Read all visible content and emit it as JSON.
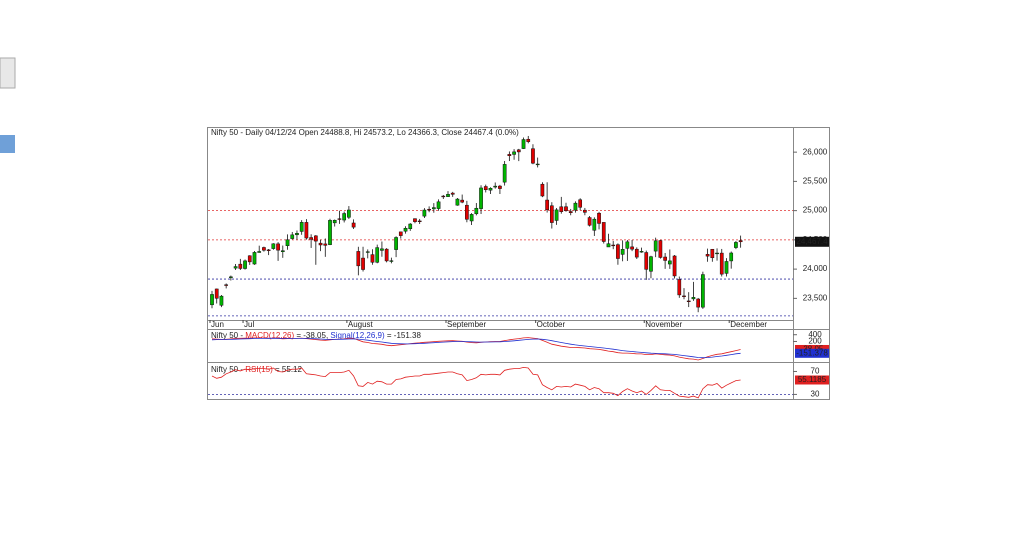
{
  "chart_data": [
    {
      "type": "candlestick",
      "title": "Nifty 50 - Daily 04/12/24 Open 24488.8, Hi 24573.2, Lo 24366.3, Close 24467.4 (0.0%)",
      "categories": [
        "Jun",
        null,
        null,
        null,
        null,
        null,
        null,
        "Jul",
        null,
        null,
        null,
        null,
        null,
        null,
        null,
        null,
        null,
        null,
        null,
        null,
        null,
        null,
        null,
        null,
        null,
        null,
        null,
        null,
        null,
        "August",
        null,
        null,
        null,
        null,
        null,
        null,
        null,
        null,
        null,
        null,
        null,
        null,
        null,
        null,
        null,
        null,
        null,
        null,
        null,
        null,
        "September",
        null,
        null,
        null,
        null,
        null,
        null,
        null,
        null,
        null,
        null,
        null,
        null,
        null,
        null,
        null,
        null,
        null,
        null,
        "October",
        null,
        null,
        null,
        null,
        null,
        null,
        null,
        null,
        null,
        null,
        null,
        null,
        null,
        null,
        null,
        null,
        null,
        null,
        null,
        null,
        null,
        null,
        "November",
        null,
        null,
        null,
        null,
        null,
        null,
        null,
        null,
        null,
        null,
        null,
        null,
        null,
        null,
        null,
        null,
        null,
        "December",
        null,
        null
      ],
      "open": [
        23390,
        23661,
        23382,
        23733,
        23854,
        24017,
        24085,
        24010,
        24229,
        24087,
        24284,
        24370,
        24329,
        24351,
        24432,
        24297,
        24400,
        24522,
        24587,
        24644,
        24799,
        24540,
        24569,
        24444,
        24431,
        24418,
        24791,
        24862,
        24839,
        24886,
        24789,
        24303,
        24189,
        24289,
        24248,
        24117,
        24320,
        24342,
        24143,
        24334,
        24637,
        24648,
        24690,
        24863,
        24824,
        24906,
        25024,
        25030,
        25035,
        25249,
        25239,
        25300,
        25093,
        25180,
        25093,
        24823,
        24946,
        25034,
        25413,
        25350,
        25403,
        25420,
        25487,
        25962,
        25961,
        26040,
        26061,
        26221,
        26059,
        25789,
        25452,
        25181,
        25084,
        24832,
        25066,
        25067,
        24985,
        25008,
        25186,
        25008,
        24882,
        24664,
        24956,
        24799,
        24379,
        24412,
        24418,
        24252,
        24355,
        24381,
        24341,
        24303,
        24284,
        23963,
        24308,
        24489,
        24207,
        24087,
        24225,
        23823,
        23542,
        23456,
        23491,
        23489,
        23349,
        24253,
        24340,
        24274,
        24274,
        23927,
        24140,
        24368,
        24488.8
      ],
      "high": [
        23627,
        23667,
        23558,
        23755,
        23890,
        24087,
        24175,
        24164,
        24237,
        24309,
        24401,
        24384,
        24344,
        24443,
        24461,
        24403,
        24593,
        24635,
        24661,
        24838,
        24855,
        24596,
        24582,
        24504,
        24524,
        24861,
        24848,
        24999,
        24984,
        25078,
        24851,
        24382,
        24382,
        24337,
        24340,
        24419,
        24473,
        24359,
        24196,
        24563,
        24638,
        24734,
        24787,
        24867,
        24858,
        25043,
        25073,
        25129,
        25192,
        25268,
        25333,
        25321,
        25216,
        25275,
        25168,
        24957,
        25130,
        25433,
        25445,
        25400,
        25482,
        25441,
        25849,
        26012,
        26051,
        26056,
        26250,
        26277,
        26135,
        25907,
        25486,
        25485,
        25144,
        25044,
        25235,
        25134,
        25029,
        25159,
        25212,
        25046,
        24908,
        24886,
        24978,
        24799,
        24604,
        24480,
        24440,
        24492,
        24498,
        24498,
        24372,
        24368,
        24317,
        24229,
        24538,
        24503,
        24276,
        24336,
        24242,
        23873,
        23676,
        23606,
        23781,
        23507,
        23956,
        24351,
        24343,
        24354,
        24345,
        24188,
        24301,
        24481,
        24573.2
      ],
      "low": [
        23330,
        23412,
        23350,
        23670,
        23805,
        23985,
        23985,
        23992,
        24072,
        24072,
        24281,
        24300,
        24240,
        24331,
        24141,
        24193,
        24332,
        24505,
        24504,
        24587,
        24505,
        24362,
        24074,
        24307,
        24210,
        24410,
        24728,
        24774,
        24798,
        24856,
        24687,
        23894,
        23960,
        24184,
        24074,
        24100,
        24212,
        24116,
        24099,
        24204,
        24522,
        24607,
        24654,
        24784,
        24771,
        24874,
        24973,
        24964,
        24998,
        25199,
        25235,
        25235,
        25084,
        25127,
        24801,
        24754,
        24919,
        24942,
        25311,
        25285,
        25376,
        25285,
        25429,
        25848,
        25871,
        25847,
        26053,
        26151,
        25794,
        25739,
        25230,
        24967,
        24694,
        24757,
        24948,
        24980,
        24921,
        24967,
        25008,
        24921,
        24728,
        24567,
        24679,
        24438,
        24378,
        24341,
        24074,
        24134,
        24140,
        24307,
        24173,
        24280,
        23816,
        23843,
        24205,
        24179,
        24004,
        24004,
        23839,
        23509,
        23484,
        23351,
        23456,
        23263,
        23320,
        24125,
        24126,
        24145,
        23874,
        23873,
        24008,
        24342,
        24366.3
      ],
      "close": [
        23567,
        23501,
        23538,
        23721,
        23868,
        24044,
        24011,
        24141,
        24124,
        24286,
        24302,
        24323,
        24320,
        24433,
        24324,
        24315,
        24502,
        24586,
        24613,
        24800,
        24531,
        24509,
        24479,
        24413,
        24406,
        24834,
        24836,
        24857,
        24951,
        25011,
        24718,
        24056,
        23993,
        24298,
        24117,
        24368,
        24347,
        24140,
        24144,
        24541,
        24573,
        24699,
        24771,
        24811,
        24823,
        25010,
        25018,
        25052,
        25151,
        25236,
        25279,
        25279,
        25198,
        25145,
        24852,
        24936,
        25041,
        25388,
        25357,
        25383,
        25419,
        25377,
        25791,
        25939,
        26005,
        26004,
        26216,
        26179,
        25811,
        25797,
        25250,
        25015,
        24796,
        25013,
        24982,
        24998,
        24964,
        25128,
        25057,
        24971,
        24750,
        24854,
        24781,
        24472,
        24435,
        24399,
        24181,
        24339,
        24467,
        24341,
        24205,
        24304,
        23996,
        24213,
        24484,
        24199,
        24148,
        24141,
        23883,
        23559,
        23533,
        23453,
        23518,
        23350,
        23907,
        24222,
        24194,
        24275,
        23914,
        24131,
        24276,
        24457,
        24467.4
      ],
      "last_label": "24,467.4",
      "up_color": "#00b400",
      "down_color": "#e00000",
      "ylim": [
        23130,
        26430
      ],
      "yticks": [
        {
          "value": 23500,
          "label": "23,500"
        },
        {
          "value": 24000,
          "label": "24,000"
        },
        {
          "value": 24500,
          "label": "24,500"
        },
        {
          "value": 25000,
          "label": "25,000"
        },
        {
          "value": 25500,
          "label": "25,500"
        },
        {
          "value": 26000,
          "label": "26,000"
        }
      ],
      "levels": [
        {
          "value": 25000,
          "color": "#e03030"
        },
        {
          "value": 24500,
          "color": "#e03030"
        },
        {
          "value": 23830,
          "color": "#3030a0"
        },
        {
          "value": 23200,
          "color": "#3030a0"
        }
      ]
    },
    {
      "type": "line",
      "title": "Nifty 50 - MACD(12,26) = -38.05, Signal(12,26,9) = -151.38",
      "series": [
        {
          "name": "MACD(12,26)",
          "color": "#e02020",
          "values": [
            280,
            270,
            260,
            265,
            275,
            290,
            295,
            300,
            300,
            305,
            305,
            300,
            295,
            300,
            290,
            280,
            285,
            290,
            290,
            300,
            285,
            270,
            255,
            240,
            230,
            250,
            260,
            270,
            280,
            300,
            290,
            240,
            190,
            170,
            140,
            130,
            115,
            90,
            75,
            90,
            105,
            120,
            135,
            150,
            160,
            175,
            185,
            195,
            205,
            215,
            220,
            222,
            215,
            205,
            180,
            165,
            160,
            175,
            185,
            195,
            200,
            200,
            225,
            250,
            270,
            285,
            305,
            315,
            300,
            285,
            230,
            175,
            120,
            90,
            60,
            40,
            20,
            20,
            15,
            5,
            -15,
            -25,
            -35,
            -60,
            -85,
            -105,
            -135,
            -145,
            -145,
            -155,
            -170,
            -170,
            -190,
            -190,
            -170,
            -185,
            -195,
            -205,
            -230,
            -265,
            -290,
            -315,
            -325,
            -350,
            -305,
            -255,
            -215,
            -180,
            -165,
            -135,
            -105,
            -70,
            -38.05
          ]
        },
        {
          "name": "Signal(12,26,9)",
          "color": "#2030d0",
          "values": [
            250,
            255,
            257,
            258,
            261,
            267,
            272,
            278,
            282,
            287,
            290,
            292,
            293,
            295,
            294,
            291,
            290,
            290,
            290,
            292,
            291,
            287,
            280,
            272,
            264,
            261,
            261,
            263,
            267,
            274,
            277,
            270,
            254,
            237,
            218,
            200,
            183,
            164,
            146,
            135,
            129,
            127,
            128,
            133,
            138,
            146,
            154,
            162,
            171,
            180,
            188,
            195,
            199,
            200,
            196,
            190,
            184,
            182,
            183,
            185,
            188,
            191,
            198,
            208,
            220,
            233,
            247,
            261,
            269,
            272,
            264,
            246,
            221,
            195,
            168,
            142,
            118,
            98,
            81,
            66,
            50,
            35,
            21,
            5,
            -13,
            -31,
            -52,
            -70,
            -85,
            -99,
            -113,
            -125,
            -138,
            -148,
            -153,
            -159,
            -166,
            -174,
            -185,
            -201,
            -219,
            -238,
            -256,
            -275,
            -281,
            -276,
            -264,
            -247,
            -231,
            -212,
            -191,
            -167,
            -151.378
          ]
        }
      ],
      "ylim": [
        -380,
        540
      ],
      "yticks": [
        200,
        400
      ]
    },
    {
      "type": "line",
      "title": "Nifty 50 - RSI(15) = 55.12",
      "series": [
        {
          "name": "RSI(15)",
          "color": "#e02020",
          "values": [
            62,
            58,
            60,
            66,
            69,
            73,
            71,
            74,
            73,
            75,
            75,
            75,
            74,
            76,
            70,
            69,
            72,
            74,
            74,
            76,
            66,
            65,
            64,
            62,
            61,
            68,
            68,
            68,
            69,
            72,
            62,
            45,
            44,
            51,
            48,
            53,
            52,
            48,
            48,
            56,
            57,
            60,
            61,
            62,
            62,
            65,
            65,
            66,
            67,
            68,
            69,
            69,
            66,
            64,
            54,
            56,
            59,
            65,
            64,
            65,
            65,
            64,
            72,
            74,
            75,
            75,
            77,
            76,
            65,
            64,
            47,
            42,
            38,
            44,
            43,
            44,
            43,
            48,
            46,
            44,
            38,
            42,
            40,
            33,
            33,
            32,
            28,
            35,
            40,
            36,
            33,
            36,
            30,
            37,
            45,
            38,
            37,
            37,
            32,
            27,
            26,
            25,
            27,
            24,
            40,
            47,
            46,
            49,
            41,
            46,
            50,
            54,
            55.1185
          ]
        }
      ],
      "ylim": [
        22,
        83
      ],
      "yticks": [
        30,
        70
      ],
      "levels": [
        {
          "value": 30,
          "color": "#3030a0"
        }
      ]
    }
  ]
}
